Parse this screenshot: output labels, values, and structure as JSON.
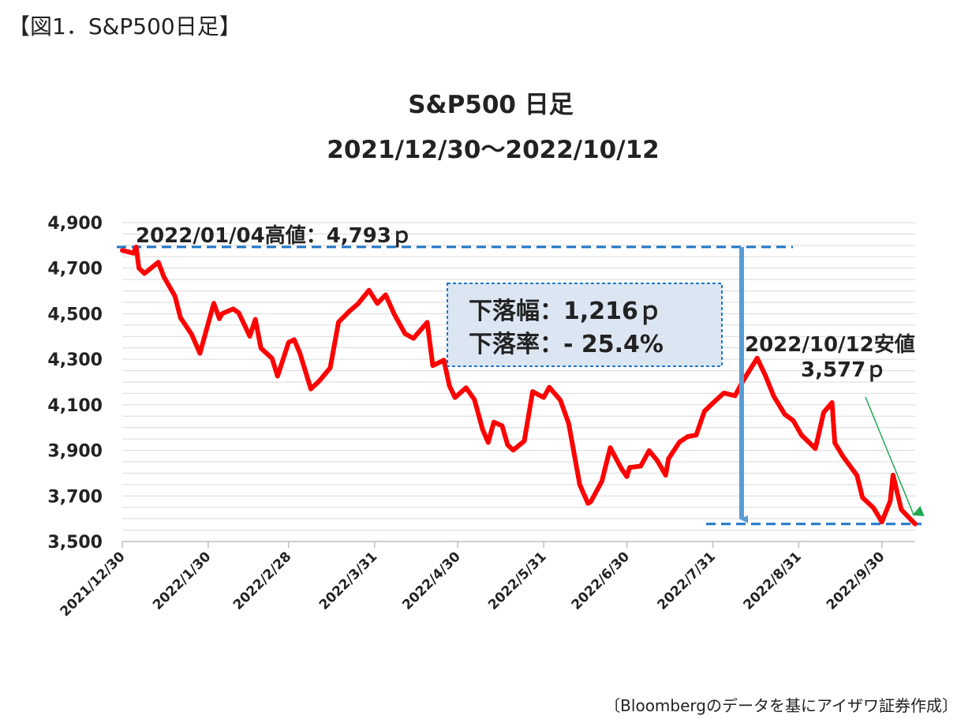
{
  "figure_label": "【図1．S&P500日足】",
  "source": "〔Bloombergのデータを基にアイザワ証券作成〕",
  "chart_data": {
    "type": "line",
    "title": "S&P500  日足",
    "subtitle": "2021/12/30〜2022/10/12",
    "xlabel": "",
    "ylabel": "",
    "ylim": [
      3500,
      4900
    ],
    "y_ticks": [
      3500,
      3700,
      3900,
      4100,
      4300,
      4500,
      4700,
      4900
    ],
    "y_tick_labels": [
      "3,500",
      "3,700",
      "3,900",
      "4,100",
      "4,300",
      "4,500",
      "4,700",
      "4,900"
    ],
    "x_ticks": [
      "2021/12/30",
      "2022/1/30",
      "2022/2/28",
      "2022/3/31",
      "2022/4/30",
      "2022/5/31",
      "2022/6/30",
      "2022/7/31",
      "2022/8/31",
      "2022/9/30"
    ],
    "x_range": [
      "2021-12-30",
      "2022-10-12"
    ],
    "grid": true,
    "series_color": "#ff0000",
    "high_line_color": "#1f77c8",
    "arrow_color": "#5b9bd5",
    "trend_arrow_color": "#1faa50",
    "series": [
      {
        "dates": [
          "2021-12-30",
          "2022-01-03",
          "2022-01-04",
          "2022-01-05",
          "2022-01-07",
          "2022-01-12",
          "2022-01-14",
          "2022-01-18",
          "2022-01-20",
          "2022-01-24",
          "2022-01-27",
          "2022-02-01",
          "2022-02-03",
          "2022-02-04",
          "2022-02-08",
          "2022-02-10",
          "2022-02-14",
          "2022-02-16",
          "2022-02-18",
          "2022-02-22",
          "2022-02-24",
          "2022-02-28",
          "2022-03-02",
          "2022-03-04",
          "2022-03-08",
          "2022-03-11",
          "2022-03-15",
          "2022-03-18",
          "2022-03-22",
          "2022-03-25",
          "2022-03-29",
          "2022-04-01",
          "2022-04-04",
          "2022-04-07",
          "2022-04-11",
          "2022-04-14",
          "2022-04-19",
          "2022-04-21",
          "2022-04-25",
          "2022-04-27",
          "2022-04-29",
          "2022-05-03",
          "2022-05-06",
          "2022-05-09",
          "2022-05-11",
          "2022-05-13",
          "2022-05-16",
          "2022-05-18",
          "2022-05-20",
          "2022-05-24",
          "2022-05-27",
          "2022-05-31",
          "2022-06-02",
          "2022-06-06",
          "2022-06-09",
          "2022-06-13",
          "2022-06-16",
          "2022-06-17",
          "2022-06-21",
          "2022-06-24",
          "2022-06-28",
          "2022-06-30",
          "2022-07-01",
          "2022-07-05",
          "2022-07-08",
          "2022-07-11",
          "2022-07-14",
          "2022-07-15",
          "2022-07-19",
          "2022-07-22",
          "2022-07-25",
          "2022-07-28",
          "2022-08-01",
          "2022-08-04",
          "2022-08-08",
          "2022-08-11",
          "2022-08-16",
          "2022-08-19",
          "2022-08-22",
          "2022-08-26",
          "2022-08-29",
          "2022-09-01",
          "2022-09-06",
          "2022-09-09",
          "2022-09-12",
          "2022-09-13",
          "2022-09-16",
          "2022-09-21",
          "2022-09-23",
          "2022-09-27",
          "2022-09-30",
          "2022-10-03",
          "2022-10-04",
          "2022-10-07",
          "2022-10-11",
          "2022-10-12"
        ],
        "values": [
          4778,
          4766,
          4793,
          4700,
          4677,
          4726,
          4662,
          4577,
          4482,
          4410,
          4326,
          4546,
          4478,
          4500,
          4521,
          4504,
          4401,
          4475,
          4349,
          4304,
          4226,
          4374,
          4386,
          4329,
          4170,
          4204,
          4262,
          4463,
          4512,
          4543,
          4603,
          4545,
          4583,
          4500,
          4412,
          4392,
          4462,
          4272,
          4296,
          4183,
          4132,
          4175,
          4123,
          3991,
          3935,
          4024,
          4008,
          3924,
          3901,
          3941,
          4158,
          4132,
          4177,
          4121,
          4018,
          3750,
          3667,
          3675,
          3765,
          3912,
          3821,
          3785,
          3825,
          3831,
          3899,
          3855,
          3791,
          3863,
          3937,
          3961,
          3967,
          4072,
          4119,
          4152,
          4140,
          4207,
          4305,
          4228,
          4137,
          4058,
          4031,
          3967,
          3908,
          4067,
          4110,
          3933,
          3873,
          3790,
          3693,
          3647,
          3586,
          3678,
          3791,
          3640,
          3589,
          3577
        ]
      }
    ],
    "annotations": {
      "high_label": "2022/01/04高値：4,793ｐ",
      "high_value": 4793,
      "low_label_line1": "2022/10/12安値",
      "low_label_line2": "3,577ｐ",
      "low_value": 3577,
      "drop_line1": "下落幅：1,216ｐ",
      "drop_line2": "下落率：- 25.4%"
    }
  }
}
